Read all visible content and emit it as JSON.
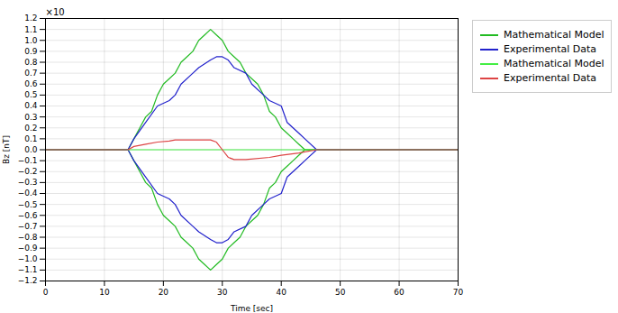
{
  "chart_data": {
    "type": "line",
    "xlabel": "Time [sec]",
    "ylabel": "Bz [nT]",
    "annotations": [
      "×10"
    ],
    "xlim": [
      0,
      70
    ],
    "ylim": [
      -1.2,
      1.2
    ],
    "xticks": [
      0,
      10,
      20,
      30,
      40,
      50,
      60,
      70
    ],
    "yticks": [
      {
        "value": -1.2,
        "label": "−1.2"
      },
      {
        "value": -1.1,
        "label": "−1.1"
      },
      {
        "value": -1.0,
        "label": "−1.0"
      },
      {
        "value": -0.9,
        "label": "−0.9"
      },
      {
        "value": -0.8,
        "label": "−0.8"
      },
      {
        "value": -0.7,
        "label": "−0.7"
      },
      {
        "value": -0.6,
        "label": "−0.6"
      },
      {
        "value": -0.5,
        "label": "−0.5"
      },
      {
        "value": -0.4,
        "label": "−0.4"
      },
      {
        "value": -0.3,
        "label": "−0.3"
      },
      {
        "value": -0.2,
        "label": "−0.2"
      },
      {
        "value": -0.1,
        "label": "−0.1"
      },
      {
        "value": 0,
        "label": "0.0"
      },
      {
        "value": 0.1,
        "label": "0.1"
      },
      {
        "value": 0.2,
        "label": "0.2"
      },
      {
        "value": 0.3,
        "label": "0.3"
      },
      {
        "value": 0.4,
        "label": "0.4"
      },
      {
        "value": 0.5,
        "label": "0.5"
      },
      {
        "value": 0.6,
        "label": "0.6"
      },
      {
        "value": 0.7,
        "label": "0.7"
      },
      {
        "value": 0.8,
        "label": "0.8"
      },
      {
        "value": 0.9,
        "label": "0.9"
      },
      {
        "value": 1.0,
        "label": "1.0"
      },
      {
        "value": 1.1,
        "label": "1.1"
      },
      {
        "value": 1.2,
        "label": "1.2"
      }
    ],
    "grid": true,
    "legend": "upper right",
    "series": [
      {
        "name": "Mathematical Model",
        "color": "#22bb22",
        "x": [
          0,
          14,
          14,
          15,
          15,
          16,
          16,
          17,
          17,
          18,
          18,
          19,
          19,
          20,
          20,
          21,
          21,
          22,
          22,
          23,
          23,
          24,
          24,
          25,
          25,
          26,
          26,
          27,
          27,
          28,
          28,
          29,
          29,
          30,
          30,
          31,
          31,
          32,
          32,
          33,
          33,
          34,
          34,
          35,
          35,
          36,
          36,
          37,
          37,
          38,
          38,
          39,
          39,
          40,
          40,
          41,
          41,
          42,
          42,
          43,
          43,
          44,
          44,
          45,
          45,
          46,
          46,
          52,
          52,
          70
        ],
        "values": [
          0,
          0,
          0,
          0.1,
          0.1,
          0.2,
          0.2,
          0.3,
          0.3,
          0.35,
          0.35,
          0.5,
          0.5,
          0.6,
          0.6,
          0.65,
          0.65,
          0.7,
          0.7,
          0.8,
          0.8,
          0.85,
          0.85,
          0.9,
          0.9,
          1.0,
          1.0,
          1.05,
          1.05,
          1.1,
          1.1,
          1.05,
          1.05,
          1.0,
          1.0,
          0.9,
          0.9,
          0.85,
          0.85,
          0.8,
          0.8,
          0.7,
          0.7,
          0.65,
          0.65,
          0.6,
          0.6,
          0.5,
          0.5,
          0.35,
          0.35,
          0.3,
          0.3,
          0.2,
          0.2,
          0.15,
          0.15,
          0.1,
          0.1,
          0.05,
          0.05,
          0.0,
          0.0,
          0.0,
          0.0,
          0.0,
          0.0,
          0.0,
          0.0,
          0.0
        ]
      },
      {
        "color": "#22bb22",
        "x": [
          0,
          14,
          14,
          15,
          15,
          16,
          16,
          17,
          17,
          18,
          18,
          19,
          19,
          20,
          20,
          21,
          21,
          22,
          22,
          23,
          23,
          24,
          24,
          25,
          25,
          26,
          26,
          27,
          27,
          28,
          28,
          29,
          29,
          30,
          30,
          31,
          31,
          32,
          32,
          33,
          33,
          34,
          34,
          35,
          35,
          36,
          36,
          37,
          37,
          38,
          38,
          39,
          39,
          40,
          40,
          41,
          41,
          42,
          42,
          43,
          43,
          44,
          44,
          45,
          45,
          46,
          46,
          52,
          52,
          70
        ],
        "values": [
          0,
          0,
          0,
          -0.1,
          -0.1,
          -0.2,
          -0.2,
          -0.3,
          -0.3,
          -0.35,
          -0.35,
          -0.5,
          -0.5,
          -0.6,
          -0.6,
          -0.65,
          -0.65,
          -0.7,
          -0.7,
          -0.8,
          -0.8,
          -0.85,
          -0.85,
          -0.9,
          -0.9,
          -1.0,
          -1.0,
          -1.05,
          -1.05,
          -1.1,
          -1.1,
          -1.05,
          -1.05,
          -1.0,
          -1.0,
          -0.9,
          -0.9,
          -0.85,
          -0.85,
          -0.8,
          -0.8,
          -0.7,
          -0.7,
          -0.65,
          -0.65,
          -0.6,
          -0.6,
          -0.5,
          -0.5,
          -0.35,
          -0.35,
          -0.3,
          -0.3,
          -0.2,
          -0.2,
          -0.15,
          -0.15,
          -0.1,
          -0.1,
          -0.05,
          -0.05,
          0.0,
          0.0,
          0.0,
          0.0,
          0.0,
          0.0,
          0.0,
          0.0,
          0.0
        ]
      },
      {
        "name": "Experimental Data",
        "color": "#2222cc",
        "x": [
          0,
          14,
          14,
          15,
          15,
          17,
          17,
          19,
          19,
          21,
          21,
          22,
          22,
          23,
          23,
          25,
          25,
          26,
          26,
          28,
          28,
          29,
          29,
          30,
          30,
          31,
          31,
          32,
          32,
          34,
          34,
          35,
          35,
          37,
          37,
          38,
          38,
          40,
          40,
          41,
          41,
          43,
          43,
          44,
          44,
          46,
          46,
          52,
          52,
          70
        ],
        "values": [
          0,
          0,
          0,
          0.1,
          0.1,
          0.25,
          0.25,
          0.4,
          0.4,
          0.45,
          0.45,
          0.5,
          0.5,
          0.6,
          0.6,
          0.7,
          0.7,
          0.75,
          0.75,
          0.82,
          0.82,
          0.85,
          0.85,
          0.85,
          0.85,
          0.82,
          0.82,
          0.75,
          0.75,
          0.7,
          0.7,
          0.6,
          0.6,
          0.5,
          0.5,
          0.45,
          0.45,
          0.4,
          0.4,
          0.25,
          0.25,
          0.15,
          0.15,
          0.1,
          0.1,
          0.0,
          0.0,
          0.0,
          0.0,
          0.0
        ]
      },
      {
        "color": "#2222cc",
        "x": [
          0,
          14,
          14,
          15,
          15,
          17,
          17,
          19,
          19,
          21,
          21,
          22,
          22,
          23,
          23,
          25,
          25,
          26,
          26,
          28,
          28,
          29,
          29,
          30,
          30,
          31,
          31,
          32,
          32,
          34,
          34,
          35,
          35,
          37,
          37,
          38,
          38,
          40,
          40,
          41,
          41,
          43,
          43,
          44,
          44,
          46,
          46,
          52,
          52,
          70
        ],
        "values": [
          0,
          0,
          0,
          -0.1,
          -0.1,
          -0.25,
          -0.25,
          -0.4,
          -0.4,
          -0.45,
          -0.45,
          -0.5,
          -0.5,
          -0.6,
          -0.6,
          -0.7,
          -0.7,
          -0.75,
          -0.75,
          -0.82,
          -0.82,
          -0.85,
          -0.85,
          -0.85,
          -0.85,
          -0.82,
          -0.82,
          -0.75,
          -0.75,
          -0.7,
          -0.7,
          -0.6,
          -0.6,
          -0.5,
          -0.5,
          -0.45,
          -0.45,
          -0.4,
          -0.4,
          -0.25,
          -0.25,
          -0.15,
          -0.15,
          -0.1,
          -0.1,
          0.0,
          0.0,
          0.0,
          0.0,
          0.0
        ]
      },
      {
        "name": "Mathematical Model",
        "color": "#44ee44",
        "x": [
          0,
          70
        ],
        "values": [
          0,
          0
        ]
      },
      {
        "name": "Experimental Data",
        "color": "#dd4444",
        "x": [
          0,
          14,
          14,
          15,
          15,
          17,
          17,
          19,
          19,
          21,
          21,
          22,
          22,
          28,
          28,
          29,
          29,
          30,
          30,
          31,
          31,
          32,
          32,
          34,
          34,
          38,
          38,
          40,
          40,
          43,
          43,
          44,
          44,
          46,
          46,
          52,
          52,
          70
        ],
        "values": [
          0,
          0,
          0,
          0.03,
          0.03,
          0.05,
          0.05,
          0.07,
          0.07,
          0.08,
          0.08,
          0.09,
          0.09,
          0.09,
          0.09,
          0.07,
          0.07,
          0.0,
          0.0,
          -0.07,
          -0.07,
          -0.09,
          -0.09,
          -0.09,
          -0.09,
          -0.07,
          -0.07,
          -0.05,
          -0.05,
          -0.03,
          -0.03,
          -0.02,
          -0.02,
          0.0,
          0.0,
          0.0,
          0.0,
          0.0
        ]
      }
    ]
  }
}
